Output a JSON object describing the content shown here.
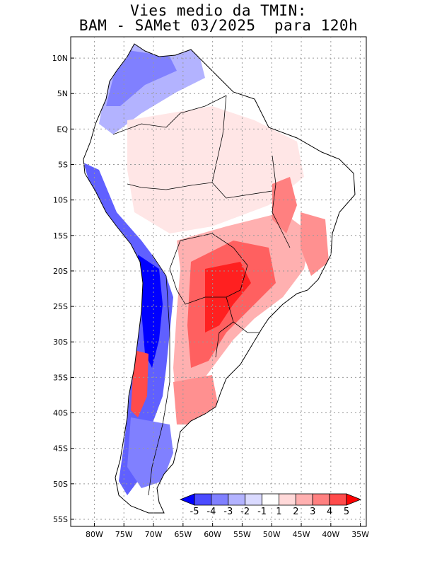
{
  "title": {
    "line1": "Vies medio da TMIN:",
    "line2": "BAM - SAMet 03/2025  para 120h"
  },
  "map": {
    "lon_range": [
      -84,
      -34
    ],
    "lat_range": [
      -56,
      13
    ],
    "lon_ticks": [
      {
        "value": -80,
        "label": "80W"
      },
      {
        "value": -75,
        "label": "75W"
      },
      {
        "value": -70,
        "label": "70W"
      },
      {
        "value": -65,
        "label": "65W"
      },
      {
        "value": -60,
        "label": "60W"
      },
      {
        "value": -55,
        "label": "55W"
      },
      {
        "value": -50,
        "label": "50W"
      },
      {
        "value": -45,
        "label": "45W"
      },
      {
        "value": -40,
        "label": "40W"
      },
      {
        "value": -35,
        "label": "35W"
      }
    ],
    "lat_ticks": [
      {
        "value": 10,
        "label": "10N"
      },
      {
        "value": 5,
        "label": "5N"
      },
      {
        "value": 0,
        "label": "EQ"
      },
      {
        "value": -5,
        "label": "5S"
      },
      {
        "value": -10,
        "label": "10S"
      },
      {
        "value": -15,
        "label": "15S"
      },
      {
        "value": -20,
        "label": "20S"
      },
      {
        "value": -25,
        "label": "25S"
      },
      {
        "value": -30,
        "label": "30S"
      },
      {
        "value": -35,
        "label": "35S"
      },
      {
        "value": -40,
        "label": "40S"
      },
      {
        "value": -45,
        "label": "45S"
      },
      {
        "value": -50,
        "label": "50S"
      },
      {
        "value": -55,
        "label": "55S"
      }
    ]
  },
  "colorbar": {
    "labels": [
      "-5",
      "-4",
      "-3",
      "-2",
      "-1",
      "1",
      "2",
      "3",
      "4",
      "5"
    ],
    "colors": [
      "#0000ff",
      "#4b4bff",
      "#8080ff",
      "#b3b3ff",
      "#dadaff",
      "#ffffff",
      "#ffd9d9",
      "#ffb0b0",
      "#ff8080",
      "#ff4b4b",
      "#ff0000"
    ]
  }
}
